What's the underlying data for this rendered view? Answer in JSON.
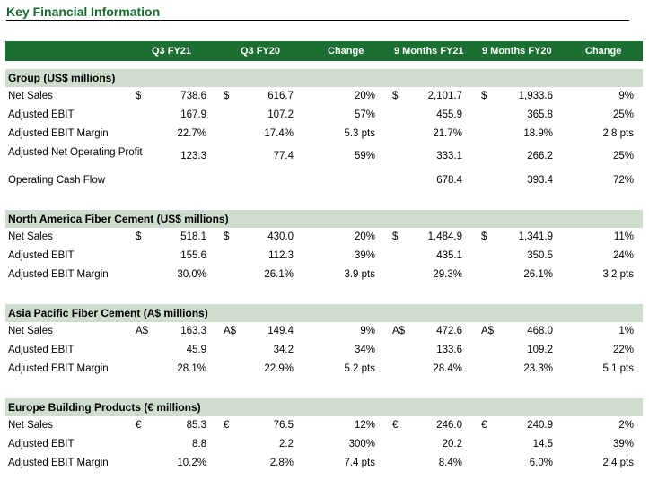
{
  "title": "Key Financial Information",
  "header": {
    "cols": [
      "Q3 FY21",
      "Q3 FY20",
      "Change",
      "9 Months FY21",
      "9 Months FY20",
      "Change"
    ]
  },
  "sections": [
    {
      "title": "Group (US$ millions)",
      "rows": [
        {
          "label": "Net Sales",
          "c1": "$",
          "v1": "738.6",
          "c2": "$",
          "v2": "616.7",
          "ch1": "20%",
          "c3": "$",
          "v3": "2,101.7",
          "c4": "$",
          "v4": "1,933.6",
          "ch2": "9%"
        },
        {
          "label": "Adjusted EBIT",
          "c1": "",
          "v1": "167.9",
          "c2": "",
          "v2": "107.2",
          "ch1": "57%",
          "c3": "",
          "v3": "455.9",
          "c4": "",
          "v4": "365.8",
          "ch2": "25%"
        },
        {
          "label": "Adjusted EBIT Margin",
          "c1": "",
          "v1": "22.7%",
          "c2": "",
          "v2": "17.4%",
          "ch1": "5.3 pts",
          "c3": "",
          "v3": "21.7%",
          "c4": "",
          "v4": "18.9%",
          "ch2": "2.8 pts"
        },
        {
          "label": "Adjusted Net Operating Profit",
          "c1": "",
          "v1": "123.3",
          "c2": "",
          "v2": "77.4",
          "ch1": "59%",
          "c3": "",
          "v3": "333.1",
          "c4": "",
          "v4": "266.2",
          "ch2": "25%"
        },
        {
          "label": "Operating Cash Flow",
          "c1": "",
          "v1": "",
          "c2": "",
          "v2": "",
          "ch1": "",
          "c3": "",
          "v3": "678.4",
          "c4": "",
          "v4": "393.4",
          "ch2": "72%"
        }
      ]
    },
    {
      "title": "North America Fiber Cement (US$ millions)",
      "rows": [
        {
          "label": "Net Sales",
          "c1": "$",
          "v1": "518.1",
          "c2": "$",
          "v2": "430.0",
          "ch1": "20%",
          "c3": "$",
          "v3": "1,484.9",
          "c4": "$",
          "v4": "1,341.9",
          "ch2": "11%"
        },
        {
          "label": "Adjusted EBIT",
          "c1": "",
          "v1": "155.6",
          "c2": "",
          "v2": "112.3",
          "ch1": "39%",
          "c3": "",
          "v3": "435.1",
          "c4": "",
          "v4": "350.5",
          "ch2": "24%"
        },
        {
          "label": "Adjusted EBIT Margin",
          "c1": "",
          "v1": "30.0%",
          "c2": "",
          "v2": "26.1%",
          "ch1": "3.9 pts",
          "c3": "",
          "v3": "29.3%",
          "c4": "",
          "v4": "26.1%",
          "ch2": "3.2 pts"
        }
      ]
    },
    {
      "title": "Asia Pacific Fiber Cement (A$ millions)",
      "rows": [
        {
          "label": "Net Sales",
          "c1": "A$",
          "v1": "163.3",
          "c2": "A$",
          "v2": "149.4",
          "ch1": "9%",
          "c3": "A$",
          "v3": "472.6",
          "c4": "A$",
          "v4": "468.0",
          "ch2": "1%"
        },
        {
          "label": "Adjusted EBIT",
          "c1": "",
          "v1": "45.9",
          "c2": "",
          "v2": "34.2",
          "ch1": "34%",
          "c3": "",
          "v3": "133.6",
          "c4": "",
          "v4": "109.2",
          "ch2": "22%"
        },
        {
          "label": "Adjusted EBIT Margin",
          "c1": "",
          "v1": "28.1%",
          "c2": "",
          "v2": "22.9%",
          "ch1": "5.2 pts",
          "c3": "",
          "v3": "28.4%",
          "c4": "",
          "v4": "23.3%",
          "ch2": "5.1 pts"
        }
      ]
    },
    {
      "title": "Europe Building Products (€ millions)",
      "rows": [
        {
          "label": "Net Sales",
          "c1": "€",
          "v1": "85.3",
          "c2": "€",
          "v2": "76.5",
          "ch1": "12%",
          "c3": "€",
          "v3": "246.0",
          "c4": "€",
          "v4": "240.9",
          "ch2": "2%"
        },
        {
          "label": "Adjusted EBIT",
          "c1": "",
          "v1": "8.8",
          "c2": "",
          "v2": "2.2",
          "ch1": "300%",
          "c3": "",
          "v3": "20.2",
          "c4": "",
          "v4": "14.5",
          "ch2": "39%"
        },
        {
          "label": "Adjusted EBIT Margin",
          "c1": "",
          "v1": "10.2%",
          "c2": "",
          "v2": "2.8%",
          "ch1": "7.4 pts",
          "c3": "",
          "v3": "8.4%",
          "c4": "",
          "v4": "6.0%",
          "ch2": "2.4 pts"
        }
      ]
    }
  ]
}
